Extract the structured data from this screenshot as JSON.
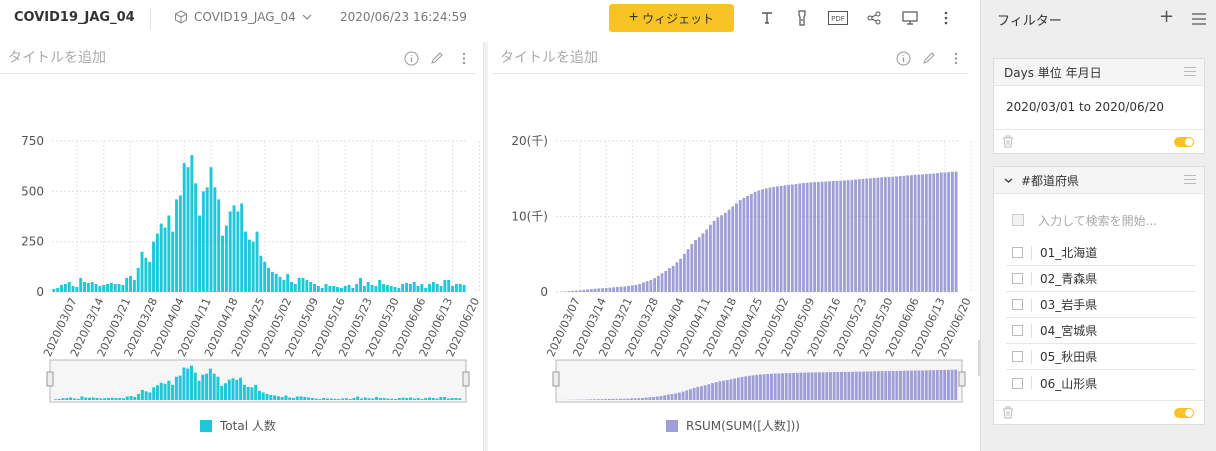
{
  "header": {
    "dashboard_title": "COVID19_JAG_04",
    "datasource": "COVID19_JAG_04",
    "timestamp": "2020/06/23 16:24:59",
    "add_widget_label": "ウィジェット",
    "tools": [
      "text-tool-icon",
      "flashlight-icon",
      "pdf-icon",
      "share-icon",
      "monitor-icon",
      "more-vertical-icon"
    ]
  },
  "left_panel": {
    "title": "タイトルを追加",
    "legend": "Total 人数",
    "color": "#1ec8d8"
  },
  "right_panel": {
    "title": "タイトルを追加",
    "legend": "RSUM(SUM([人数]))",
    "color": "#a09ed6"
  },
  "chart_data": [
    {
      "type": "bar",
      "yticks": [
        "0",
        "250",
        "500",
        "750"
      ],
      "ylim": [
        0,
        750
      ],
      "xticks": [
        "2020/03/07",
        "2020/03/14",
        "2020/03/21",
        "2020/03/28",
        "2020/04/04",
        "2020/04/11",
        "2020/04/18",
        "2020/04/25",
        "2020/05/02",
        "2020/05/09",
        "2020/05/16",
        "2020/05/23",
        "2020/05/30",
        "2020/06/06",
        "2020/06/13",
        "2020/06/20"
      ],
      "x_start": "2020/03/01",
      "x_end": "2020/06/20",
      "values": [
        15,
        20,
        35,
        40,
        50,
        30,
        25,
        70,
        50,
        45,
        50,
        40,
        30,
        35,
        40,
        45,
        40,
        40,
        35,
        70,
        80,
        60,
        120,
        200,
        170,
        150,
        250,
        290,
        340,
        320,
        380,
        300,
        460,
        480,
        640,
        620,
        680,
        540,
        380,
        500,
        520,
        620,
        520,
        460,
        280,
        330,
        400,
        430,
        400,
        440,
        300,
        260,
        250,
        300,
        180,
        150,
        120,
        100,
        90,
        75,
        60,
        90,
        50,
        40,
        70,
        70,
        60,
        50,
        40,
        30,
        20,
        40,
        30,
        30,
        25,
        20,
        30,
        35,
        20,
        40,
        70,
        30,
        50,
        35,
        30,
        60,
        40,
        35,
        30,
        25,
        20,
        40,
        45,
        40,
        50,
        30,
        40,
        20,
        40,
        50,
        40,
        30,
        60,
        60,
        30,
        40,
        40,
        35
      ]
    },
    {
      "type": "bar",
      "yticks": [
        "0",
        "10(千)",
        "20(千)"
      ],
      "ylim": [
        0,
        20000
      ],
      "xticks": [
        "2020/03/07",
        "2020/03/14",
        "2020/03/21",
        "2020/03/28",
        "2020/04/04",
        "2020/04/11",
        "2020/04/18",
        "2020/04/25",
        "2020/05/02",
        "2020/05/09",
        "2020/05/16",
        "2020/05/23",
        "2020/05/30",
        "2020/06/06",
        "2020/06/13",
        "2020/06/20"
      ],
      "x_start": "2020/03/01",
      "x_end": "2020/06/20",
      "series_note": "running sum of left series"
    }
  ],
  "filter_panel": {
    "title": "フィルター",
    "date_filter": {
      "header": "Days 単位 年月日",
      "range": "2020/03/01 to 2020/06/20"
    },
    "prefecture_filter": {
      "header": "#都道府県",
      "search_placeholder": "入力して検索を開始...",
      "items": [
        "01_北海道",
        "02_青森県",
        "03_岩手県",
        "04_宮城県",
        "05_秋田県",
        "06_山形県"
      ]
    }
  }
}
